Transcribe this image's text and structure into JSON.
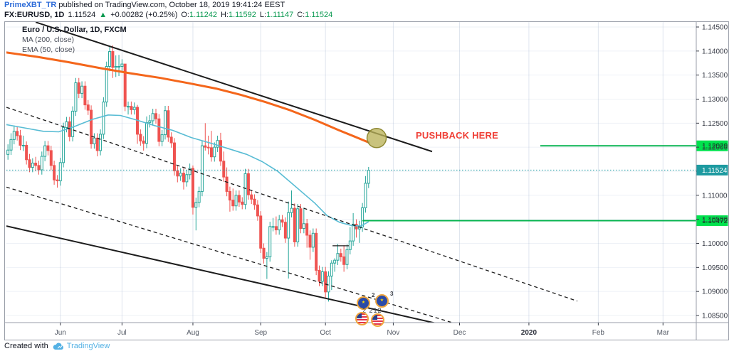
{
  "header": {
    "author": "PrimeXBT_TR",
    "published": " published on TradingView.com, October 18, 2019 19:41:24 EEST",
    "symbol": "FX:EURUSD, 1D",
    "last": "1.11524",
    "arrow": "▲",
    "change": "+0.00282 (+0.25%)",
    "o_label": "O:",
    "o": "1.11242",
    "h_label": "H:",
    "h": "1.11592",
    "l_label": "L:",
    "l": "1.11147",
    "c_label": "C:",
    "c": "1.11524"
  },
  "legend": {
    "title": "Euro / U.S. Dollar, 1D, FXCM",
    "ma": "MA (200, close)",
    "ema": "EMA (50, close)"
  },
  "annotations": {
    "pushback": "PUSHBACK HERE",
    "reactions": {
      "count_a": "2",
      "count_b": "3",
      "count_total": "2 212"
    }
  },
  "footer": {
    "created_with": "Created with",
    "brand": "TradingView"
  },
  "chart_data": {
    "type": "candlestick",
    "title": "Euro / U.S. Dollar, 1D, FXCM",
    "symbol": "EURUSD",
    "interval": "1D",
    "ylim": [
      1.085,
      1.145
    ],
    "grid_step": 0.005,
    "y_ticks": [
      {
        "price": 1.145,
        "label": "1.14500"
      },
      {
        "price": 1.14,
        "label": "1.14000"
      },
      {
        "price": 1.135,
        "label": "1.13500"
      },
      {
        "price": 1.13,
        "label": "1.13000"
      },
      {
        "price": 1.125,
        "label": "1.12500"
      },
      {
        "price": 1.12,
        "label": "1.12000"
      },
      {
        "price": 1.115,
        "label": "1.11500"
      },
      {
        "price": 1.11,
        "label": "1.11000"
      },
      {
        "price": 1.105,
        "label": "1.10500"
      },
      {
        "price": 1.1,
        "label": "1.10000"
      },
      {
        "price": 1.095,
        "label": "1.09500"
      },
      {
        "price": 1.09,
        "label": "1.09000"
      },
      {
        "price": 1.085,
        "label": "1.08500"
      }
    ],
    "months": [
      {
        "label": "Jun",
        "day": 17.5
      },
      {
        "label": "Jul",
        "day": 37.5
      },
      {
        "label": "Aug",
        "day": 60.5
      },
      {
        "label": "Sep",
        "day": 82.5
      },
      {
        "label": "Oct",
        "day": 103.5
      },
      {
        "label": "Nov",
        "day": 125.5
      },
      {
        "label": "Dec",
        "day": 147.0
      },
      {
        "label": "2020",
        "day": 169.5
      },
      {
        "label": "Feb",
        "day": 192.0
      },
      {
        "label": "Mar",
        "day": 213.0
      }
    ],
    "candles": [
      [
        1.1185,
        1.1206,
        1.1174,
        1.1194
      ],
      [
        1.1194,
        1.1229,
        1.1184,
        1.1216
      ],
      [
        1.1216,
        1.1245,
        1.1206,
        1.1233
      ],
      [
        1.1233,
        1.1243,
        1.1214,
        1.1224
      ],
      [
        1.1224,
        1.1236,
        1.1194,
        1.1204
      ],
      [
        1.1204,
        1.1224,
        1.1192,
        1.1204
      ],
      [
        1.1204,
        1.1212,
        1.1164,
        1.1174
      ],
      [
        1.1174,
        1.1186,
        1.1148,
        1.1158
      ],
      [
        1.1158,
        1.1177,
        1.1148,
        1.1167
      ],
      [
        1.1167,
        1.118,
        1.115,
        1.1162
      ],
      [
        1.1162,
        1.1172,
        1.1143,
        1.1153
      ],
      [
        1.1153,
        1.1191,
        1.1143,
        1.1181
      ],
      [
        1.1181,
        1.1213,
        1.1171,
        1.1203
      ],
      [
        1.1203,
        1.1213,
        1.1183,
        1.1193
      ],
      [
        1.1193,
        1.1203,
        1.1152,
        1.1162
      ],
      [
        1.1162,
        1.1172,
        1.1122,
        1.1132
      ],
      [
        1.1132,
        1.1142,
        1.1116,
        1.113
      ],
      [
        1.113,
        1.1178,
        1.112,
        1.1168
      ],
      [
        1.1168,
        1.1251,
        1.1158,
        1.1241
      ],
      [
        1.1241,
        1.1263,
        1.1231,
        1.1253
      ],
      [
        1.1253,
        1.1263,
        1.1212,
        1.1222
      ],
      [
        1.1222,
        1.1285,
        1.1212,
        1.1275
      ],
      [
        1.1275,
        1.1344,
        1.1265,
        1.1334
      ],
      [
        1.1334,
        1.1344,
        1.1302,
        1.1312
      ],
      [
        1.1312,
        1.1337,
        1.1302,
        1.1327
      ],
      [
        1.1327,
        1.1337,
        1.1278,
        1.1288
      ],
      [
        1.1288,
        1.1298,
        1.1267,
        1.1277
      ],
      [
        1.1277,
        1.1287,
        1.1197,
        1.1207
      ],
      [
        1.1207,
        1.1229,
        1.1197,
        1.1219
      ],
      [
        1.1219,
        1.1229,
        1.1181,
        1.1193
      ],
      [
        1.1193,
        1.1237,
        1.1183,
        1.1227
      ],
      [
        1.1227,
        1.1304,
        1.1217,
        1.1294
      ],
      [
        1.1294,
        1.1378,
        1.1284,
        1.1368
      ],
      [
        1.1368,
        1.1409,
        1.1358,
        1.1399
      ],
      [
        1.1399,
        1.1412,
        1.1344,
        1.1366
      ],
      [
        1.1366,
        1.1391,
        1.1346,
        1.1368
      ],
      [
        1.1368,
        1.1392,
        1.1348,
        1.1368
      ],
      [
        1.1368,
        1.1383,
        1.1358,
        1.1373
      ],
      [
        1.1373,
        1.1373,
        1.1275,
        1.1285
      ],
      [
        1.1285,
        1.1295,
        1.1268,
        1.1285
      ],
      [
        1.1285,
        1.1295,
        1.1268,
        1.1278
      ],
      [
        1.1278,
        1.1293,
        1.1268,
        1.1283
      ],
      [
        1.1283,
        1.1288,
        1.1207,
        1.1227
      ],
      [
        1.1227,
        1.1237,
        1.1203,
        1.1213
      ],
      [
        1.1213,
        1.1223,
        1.1193,
        1.1208
      ],
      [
        1.1208,
        1.1264,
        1.1198,
        1.1251
      ],
      [
        1.1251,
        1.1267,
        1.1241,
        1.1255
      ],
      [
        1.1255,
        1.128,
        1.1245,
        1.127
      ],
      [
        1.127,
        1.128,
        1.1249,
        1.1259
      ],
      [
        1.1259,
        1.1269,
        1.1202,
        1.1212
      ],
      [
        1.1212,
        1.1236,
        1.1202,
        1.1226
      ],
      [
        1.1226,
        1.1286,
        1.1216,
        1.1276
      ],
      [
        1.1276,
        1.1286,
        1.1211,
        1.1221
      ],
      [
        1.1221,
        1.1231,
        1.1199,
        1.1209
      ],
      [
        1.1209,
        1.1219,
        1.1141,
        1.1151
      ],
      [
        1.1151,
        1.1161,
        1.1127,
        1.114
      ],
      [
        1.114,
        1.1156,
        1.113,
        1.1146
      ],
      [
        1.1146,
        1.1156,
        1.1112,
        1.1128
      ],
      [
        1.1128,
        1.1153,
        1.1118,
        1.1143
      ],
      [
        1.1143,
        1.1166,
        1.1133,
        1.1156
      ],
      [
        1.1156,
        1.1162,
        1.106,
        1.1075
      ],
      [
        1.1075,
        1.1095,
        1.1027,
        1.1085
      ],
      [
        1.1085,
        1.1118,
        1.1075,
        1.1108
      ],
      [
        1.1108,
        1.1213,
        1.1098,
        1.1203
      ],
      [
        1.1203,
        1.125,
        1.1193,
        1.12
      ],
      [
        1.12,
        1.1224,
        1.1185,
        1.1199
      ],
      [
        1.1199,
        1.1234,
        1.117,
        1.118
      ],
      [
        1.118,
        1.121,
        1.117,
        1.12
      ],
      [
        1.12,
        1.1224,
        1.119,
        1.1214
      ],
      [
        1.1214,
        1.123,
        1.1161,
        1.1171
      ],
      [
        1.1171,
        1.1191,
        1.1128,
        1.1138
      ],
      [
        1.1138,
        1.1158,
        1.1098,
        1.1108
      ],
      [
        1.1108,
        1.1118,
        1.1066,
        1.109
      ],
      [
        1.109,
        1.1114,
        1.1068,
        1.1078
      ],
      [
        1.1078,
        1.111,
        1.1068,
        1.11
      ],
      [
        1.11,
        1.111,
        1.1076,
        1.1086
      ],
      [
        1.1086,
        1.1096,
        1.1071,
        1.1081
      ],
      [
        1.1081,
        1.1155,
        1.1071,
        1.1145
      ],
      [
        1.1145,
        1.1155,
        1.1091,
        1.1101
      ],
      [
        1.1101,
        1.1111,
        1.1082,
        1.1092
      ],
      [
        1.1092,
        1.1102,
        1.107,
        1.108
      ],
      [
        1.108,
        1.109,
        1.1047,
        1.1057
      ],
      [
        1.1057,
        1.1067,
        1.098,
        1.099
      ],
      [
        1.099,
        1.1,
        1.0958,
        1.0969
      ],
      [
        1.0969,
        1.0982,
        1.0926,
        1.0972
      ],
      [
        1.0972,
        1.1045,
        1.0962,
        1.1035
      ],
      [
        1.1035,
        1.1053,
        1.1025,
        1.1035
      ],
      [
        1.1035,
        1.1056,
        1.1018,
        1.1028
      ],
      [
        1.1028,
        1.1059,
        1.1018,
        1.1049
      ],
      [
        1.1049,
        1.1059,
        1.1034,
        1.1044
      ],
      [
        1.1044,
        1.1054,
        1.1001,
        1.1011
      ],
      [
        1.1011,
        1.1087,
        1.0927,
        1.1064
      ],
      [
        1.1064,
        1.111,
        1.1054,
        1.1073
      ],
      [
        1.1073,
        1.1083,
        1.0993,
        1.1003
      ],
      [
        1.1003,
        1.1082,
        1.0993,
        1.1072
      ],
      [
        1.1072,
        1.1082,
        1.1021,
        1.1031
      ],
      [
        1.1031,
        1.1074,
        1.1021,
        1.1041
      ],
      [
        1.1041,
        1.1051,
        1.0991,
        1.1017
      ],
      [
        1.1017,
        1.1027,
        1.0966,
        1.0992
      ],
      [
        1.0992,
        1.1031,
        1.0982,
        1.1021
      ],
      [
        1.1021,
        1.1031,
        1.0934,
        1.0944
      ],
      [
        1.0944,
        1.0954,
        1.0911,
        1.0921
      ],
      [
        1.0921,
        1.0951,
        1.0911,
        1.0941
      ],
      [
        1.0941,
        1.0951,
        1.0885,
        1.0899
      ],
      [
        1.0899,
        1.0942,
        1.0879,
        1.0932
      ],
      [
        1.0932,
        1.0965,
        1.0903,
        1.0959
      ],
      [
        1.0959,
        1.0969,
        1.0941,
        1.0965
      ],
      [
        1.0965,
        1.0999,
        1.0955,
        1.0979
      ],
      [
        1.0979,
        1.0989,
        1.0962,
        1.0972
      ],
      [
        1.0972,
        1.0996,
        1.0941,
        1.0956
      ],
      [
        1.0956,
        1.0998,
        1.0946,
        1.0987
      ],
      [
        1.0987,
        1.1034,
        1.0977,
        1.1005
      ],
      [
        1.1005,
        1.1063,
        1.0995,
        1.104
      ],
      [
        1.104,
        1.105,
        1.1012,
        1.103
      ],
      [
        1.103,
        1.1047,
        1.1001,
        1.1034
      ],
      [
        1.1034,
        1.1084,
        1.1024,
        1.1074
      ],
      [
        1.1074,
        1.114,
        1.1064,
        1.1125
      ],
      [
        1.1125,
        1.1159,
        1.1115,
        1.1152
      ]
    ],
    "ma200_points": [
      [
        0,
        1.1397
      ],
      [
        10,
        1.1388
      ],
      [
        20,
        1.1377
      ],
      [
        30,
        1.1365
      ],
      [
        40,
        1.1354
      ],
      [
        50,
        1.1344
      ],
      [
        60,
        1.1332
      ],
      [
        68,
        1.1322
      ],
      [
        76,
        1.1309
      ],
      [
        84,
        1.1294
      ],
      [
        92,
        1.1277
      ],
      [
        100,
        1.1257
      ],
      [
        108,
        1.1235
      ],
      [
        113,
        1.1222
      ],
      [
        117.5,
        1.121
      ]
    ],
    "ema50_points": [
      [
        0,
        1.1247
      ],
      [
        6,
        1.124
      ],
      [
        12,
        1.1233
      ],
      [
        17,
        1.1232
      ],
      [
        22,
        1.1243
      ],
      [
        28,
        1.1258
      ],
      [
        33,
        1.1267
      ],
      [
        37,
        1.1266
      ],
      [
        42,
        1.1257
      ],
      [
        48,
        1.1245
      ],
      [
        54,
        1.1235
      ],
      [
        60,
        1.122
      ],
      [
        66,
        1.1209
      ],
      [
        72,
        1.1197
      ],
      [
        78,
        1.1185
      ],
      [
        83,
        1.117
      ],
      [
        88,
        1.115
      ],
      [
        92,
        1.1128
      ],
      [
        96,
        1.1106
      ],
      [
        100,
        1.1084
      ],
      [
        104,
        1.1058
      ],
      [
        108,
        1.1044
      ],
      [
        112,
        1.1037
      ],
      [
        115,
        1.1036
      ],
      [
        117.5,
        1.1045
      ]
    ],
    "trendlines": [
      {
        "name": "upper-channel-solid",
        "d1": 9.5,
        "p1": 1.146,
        "d2": 138.1,
        "p2": 1.1191,
        "style": "solid",
        "width": 2
      },
      {
        "name": "lower-channel-solid",
        "d1": 0,
        "p1": 1.1036,
        "d2": 141.3,
        "p2": 1.0831,
        "style": "solid",
        "width": 2
      },
      {
        "name": "upper-dashed",
        "d1": 0,
        "p1": 1.1283,
        "d2": 185.2,
        "p2": 1.088,
        "style": "dashed",
        "width": 1.3
      },
      {
        "name": "lower-dashed",
        "d1": 0,
        "p1": 1.1117,
        "d2": 147.8,
        "p2": 1.0829,
        "style": "dashed",
        "width": 1.3
      },
      {
        "name": "mini-level",
        "d1": 105.8,
        "p1": 1.0995,
        "d2": 111.1,
        "p2": 1.0995,
        "style": "solid",
        "width": 1.3
      }
    ],
    "rays": [
      {
        "name": "resistance-ray",
        "price": 1.12029,
        "label": "1.12029",
        "from_day": 173.2
      },
      {
        "name": "support-ray",
        "price": 1.10472,
        "label": "1.10472",
        "from_day": 115.5
      }
    ],
    "price_line": {
      "value": 1.11524,
      "label": "1.11524"
    },
    "highlight_circle": {
      "day": 120.1,
      "price": 1.1219,
      "radius_px": 13.5
    },
    "colors": {
      "up": "#26a69a",
      "up_fill": "#ffffff",
      "down": "#ef5350",
      "ma200": "#f4661b",
      "ema50": "#58bcd4",
      "trendline": "#1c1c1c",
      "ray_green": "#00b24b",
      "ray_label_bg": "#00e24e",
      "ray_label_text": "#083d14",
      "price_line": "#26a1a8",
      "price_label_bg": "#1d9aa0",
      "price_label_text": "#ffffff",
      "grid_v": "rgba(150,170,200,0.30)",
      "grid_h": "rgba(150,170,200,0.16)",
      "axis_text": "#363a45",
      "border": "#999ea8",
      "circle_fill": "rgba(186,178,89,0.78)",
      "circle_stroke": "#8f8933",
      "pushback": "#ef3e35"
    }
  }
}
